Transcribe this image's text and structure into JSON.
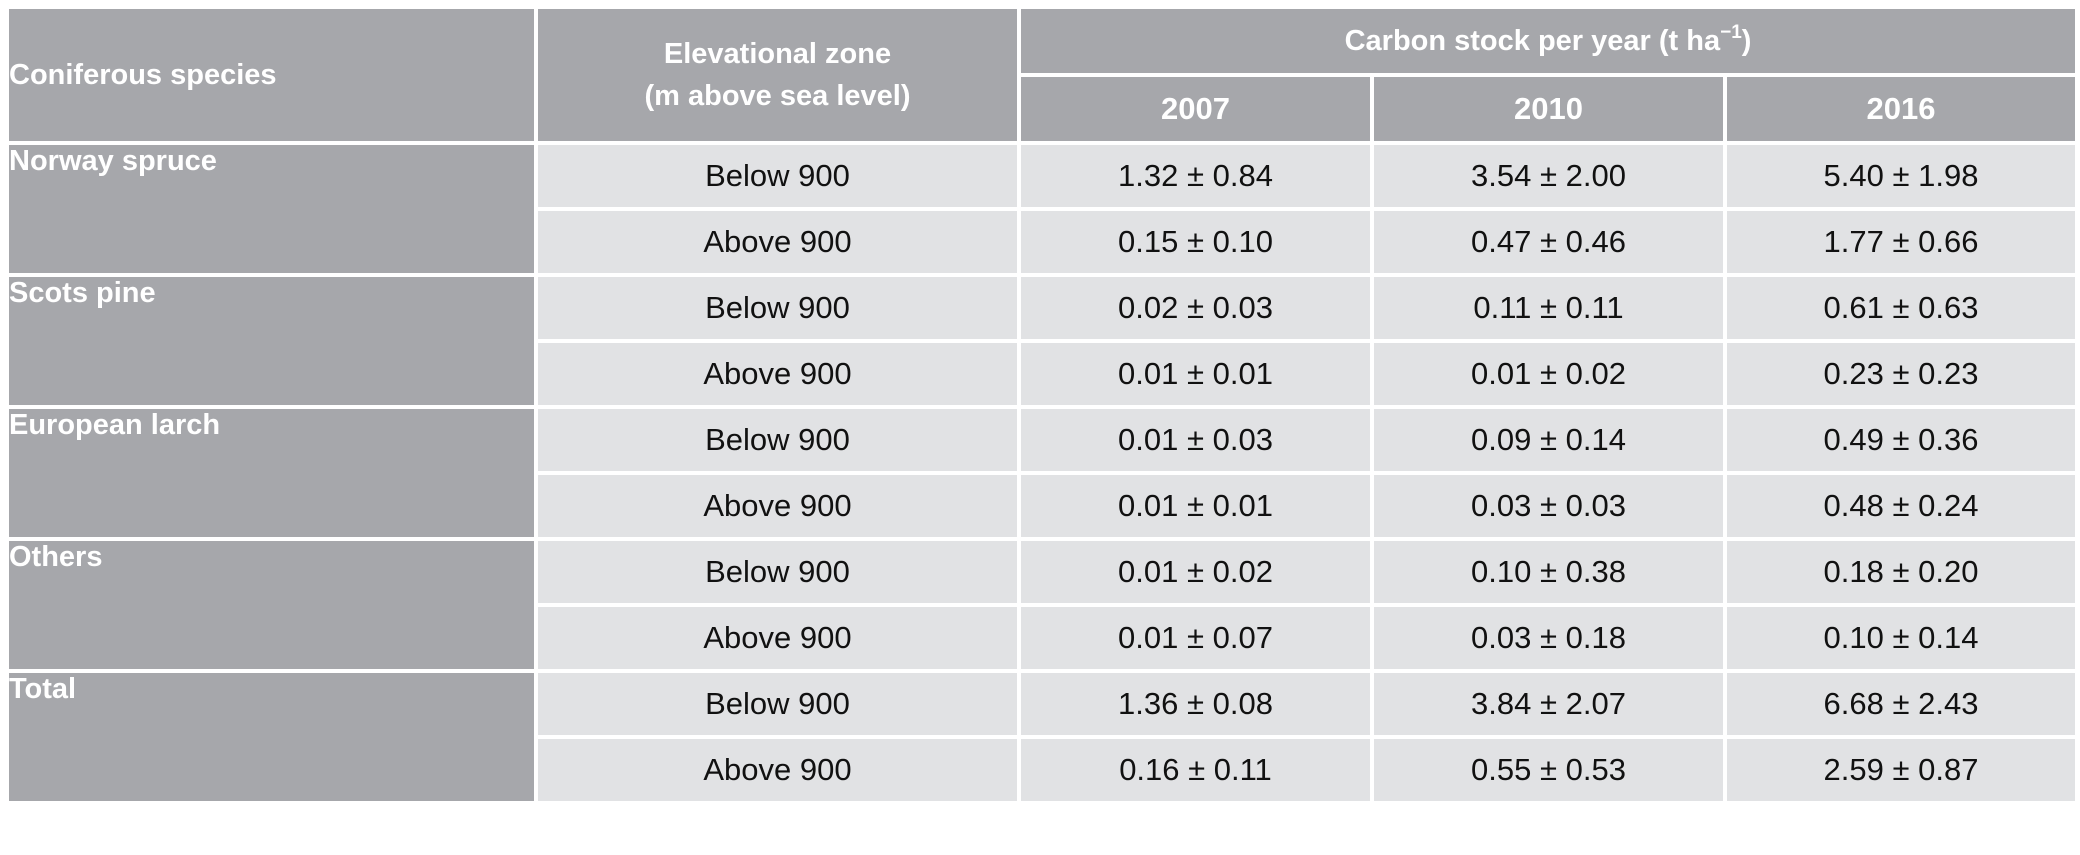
{
  "header": {
    "species_label": "Coniferous species",
    "zone_label_line1": "Elevational zone",
    "zone_label_line2": "(m above sea level)",
    "carbon_label": "Carbon stock per year (t ha",
    "carbon_unit_exponent": "−1",
    "carbon_label_close": ")",
    "years": [
      "2007",
      "2010",
      "2016"
    ]
  },
  "rows": [
    {
      "species": "Norway spruce",
      "zone": "Below 900",
      "values": [
        "1.32 ± 0.84",
        "3.54 ± 2.00",
        "5.40 ± 1.98"
      ]
    },
    {
      "species": "",
      "zone": "Above 900",
      "values": [
        "0.15 ± 0.10",
        "0.47 ± 0.46",
        "1.77 ± 0.66"
      ]
    },
    {
      "species": "Scots pine",
      "zone": "Below 900",
      "values": [
        "0.02 ± 0.03",
        "0.11 ± 0.11",
        "0.61 ± 0.63"
      ]
    },
    {
      "species": "",
      "zone": "Above 900",
      "values": [
        "0.01 ± 0.01",
        "0.01 ± 0.02",
        "0.23 ± 0.23"
      ]
    },
    {
      "species": "European larch",
      "zone": "Below 900",
      "values": [
        "0.01 ± 0.03",
        "0.09 ± 0.14",
        "0.49 ± 0.36"
      ]
    },
    {
      "species": "",
      "zone": "Above 900",
      "values": [
        "0.01 ± 0.01",
        "0.03 ± 0.03",
        "0.48 ± 0.24"
      ]
    },
    {
      "species": "Others",
      "zone": "Below 900",
      "values": [
        "0.01 ± 0.02",
        "0.10 ± 0.38",
        "0.18 ± 0.20"
      ]
    },
    {
      "species": "",
      "zone": "Above 900",
      "values": [
        "0.01 ± 0.07",
        "0.03 ± 0.18",
        "0.10 ± 0.14"
      ]
    },
    {
      "species": "Total",
      "zone": "Below 900",
      "values": [
        "1.36 ± 0.08",
        "3.84 ± 2.07",
        "6.68 ± 2.43"
      ]
    },
    {
      "species": "",
      "zone": "Above 900",
      "values": [
        "0.16 ± 0.11",
        "0.55 ± 0.53",
        "2.59 ± 0.87"
      ]
    }
  ],
  "colors": {
    "header_bg": "#a6a7ab",
    "cell_bg": "#e1e2e4",
    "border": "#ffffff"
  }
}
